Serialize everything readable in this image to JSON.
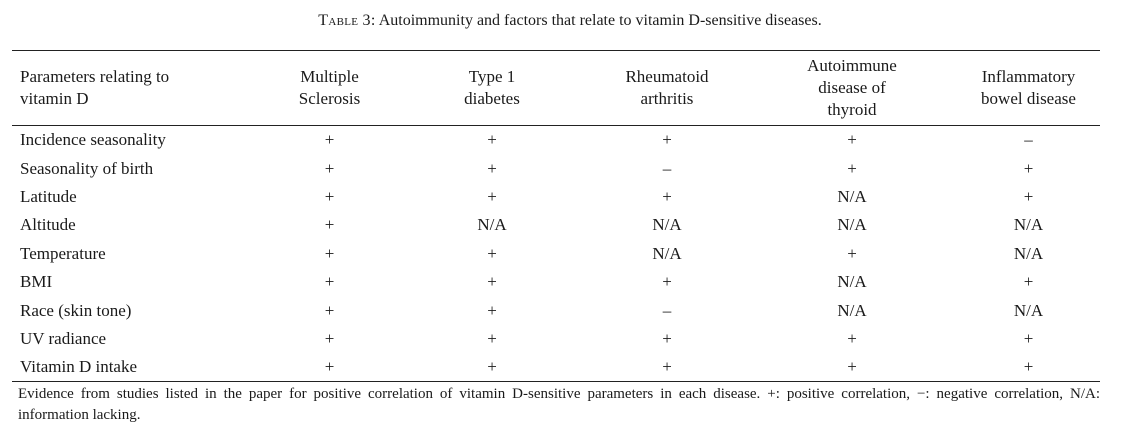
{
  "caption": {
    "label": "Table 3:",
    "title": "Autoimmunity and factors that relate to vitamin D-sensitive diseases."
  },
  "header": [
    [
      "Parameters relating to",
      "vitamin D"
    ],
    [
      "Multiple",
      "Sclerosis"
    ],
    [
      "Type 1",
      "diabetes"
    ],
    [
      "Rheumatoid",
      "arthritis"
    ],
    [
      "Autoimmune",
      "disease of",
      "thyroid"
    ],
    [
      "Inflammatory",
      "bowel disease"
    ]
  ],
  "rows": [
    [
      "Incidence seasonality",
      "+",
      "+",
      "+",
      "+",
      "–"
    ],
    [
      "Seasonality of birth",
      "+",
      "+",
      "–",
      "+",
      "+"
    ],
    [
      "Latitude",
      "+",
      "+",
      "+",
      "N/A",
      "+"
    ],
    [
      "Altitude",
      "+",
      "N/A",
      "N/A",
      "N/A",
      "N/A"
    ],
    [
      "Temperature",
      "+",
      "+",
      "N/A",
      "+",
      "N/A"
    ],
    [
      "BMI",
      "+",
      "+",
      "+",
      "N/A",
      "+"
    ],
    [
      "Race (skin tone)",
      "+",
      "+",
      "–",
      "N/A",
      "N/A"
    ],
    [
      "UV radiance",
      "+",
      "+",
      "+",
      "+",
      "+"
    ],
    [
      "Vitamin D intake",
      "+",
      "+",
      "+",
      "+",
      "+"
    ]
  ],
  "footnote": "Evidence from studies listed in the paper for positive correlation of vitamin D-sensitive parameters in each disease. +: positive correlation, −: negative correlation, N/A: information lacking."
}
